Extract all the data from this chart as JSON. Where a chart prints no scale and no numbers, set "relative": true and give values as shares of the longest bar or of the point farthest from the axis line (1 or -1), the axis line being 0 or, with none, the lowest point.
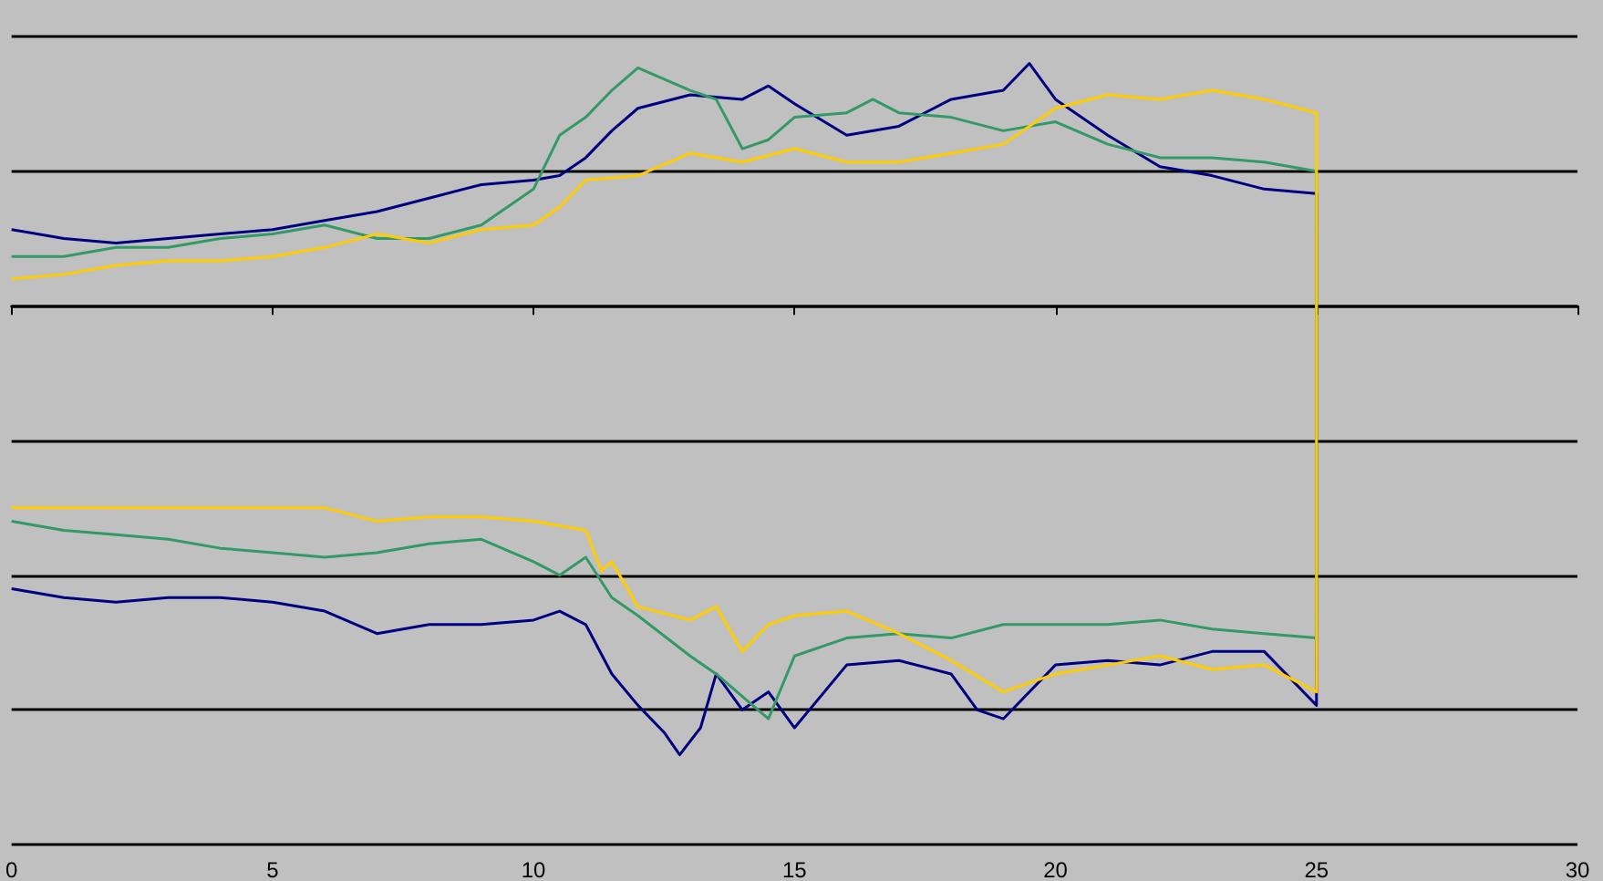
{
  "chart_data": {
    "type": "line",
    "relative": true,
    "xlim": [
      0,
      30
    ],
    "xticks": [
      0,
      5,
      10,
      15,
      20,
      25,
      30
    ],
    "grid": "y",
    "marker": "none",
    "series": [
      {
        "color": "#000080",
        "x": [
          0,
          1,
          2,
          3,
          4,
          5,
          6,
          7,
          8,
          9,
          10,
          10.5,
          11,
          11.5,
          12,
          13,
          14,
          14.5,
          15,
          16,
          17,
          18,
          19,
          19.5,
          20,
          21,
          22,
          23,
          24,
          25,
          25,
          24,
          23,
          22,
          21,
          20,
          19,
          18.5,
          18,
          17,
          16,
          15,
          14.5,
          14,
          13.5,
          13.2,
          12.8,
          12.5,
          12,
          11.5,
          11,
          10.5,
          10,
          9,
          8,
          7,
          6,
          5,
          4,
          3,
          2,
          1,
          0
        ],
        "values": [
          0.17,
          0.15,
          0.14,
          0.15,
          0.16,
          0.17,
          0.19,
          0.21,
          0.24,
          0.27,
          0.28,
          0.29,
          0.33,
          0.39,
          0.44,
          0.47,
          0.46,
          0.49,
          0.45,
          0.38,
          0.4,
          0.46,
          0.48,
          0.54,
          0.46,
          0.38,
          0.31,
          0.29,
          0.26,
          0.25,
          -0.89,
          -0.77,
          -0.77,
          -0.8,
          -0.79,
          -0.8,
          -0.92,
          -0.9,
          -0.82,
          -0.79,
          -0.8,
          -0.94,
          -0.86,
          -0.9,
          -0.82,
          -0.94,
          -1.0,
          -0.95,
          -0.89,
          -0.82,
          -0.71,
          -0.68,
          -0.7,
          -0.71,
          -0.71,
          -0.73,
          -0.68,
          -0.66,
          -0.65,
          -0.65,
          -0.66,
          -0.65,
          -0.63
        ]
      },
      {
        "color": "#339966",
        "x": [
          0,
          1,
          2,
          3,
          4,
          5,
          6,
          7,
          8,
          9,
          10,
          10.5,
          11,
          11.5,
          12,
          13,
          13.5,
          14,
          14.5,
          15,
          16,
          16.5,
          17,
          18,
          19,
          20,
          21,
          22,
          23,
          24,
          25,
          25,
          24,
          23,
          22,
          21,
          20,
          19,
          18,
          17,
          16,
          15,
          14.5,
          14,
          13.5,
          13,
          12,
          11.5,
          11,
          10.5,
          10,
          9,
          8,
          7,
          6,
          5,
          4,
          3,
          2,
          1,
          0
        ],
        "values": [
          0.11,
          0.11,
          0.13,
          0.13,
          0.15,
          0.16,
          0.18,
          0.15,
          0.15,
          0.18,
          0.26,
          0.38,
          0.42,
          0.48,
          0.53,
          0.48,
          0.46,
          0.35,
          0.37,
          0.42,
          0.43,
          0.46,
          0.43,
          0.42,
          0.39,
          0.41,
          0.36,
          0.33,
          0.33,
          0.32,
          0.3,
          -0.74,
          -0.73,
          -0.72,
          -0.7,
          -0.71,
          -0.71,
          -0.71,
          -0.74,
          -0.73,
          -0.74,
          -0.78,
          -0.92,
          -0.87,
          -0.82,
          -0.78,
          -0.69,
          -0.65,
          -0.56,
          -0.6,
          -0.57,
          -0.52,
          -0.53,
          -0.55,
          -0.56,
          -0.55,
          -0.54,
          -0.52,
          -0.51,
          -0.5,
          -0.48
        ]
      },
      {
        "color": "#ffcc00",
        "x": [
          0,
          1,
          2,
          3,
          4,
          5,
          6,
          7,
          8,
          9,
          10,
          10.5,
          11,
          12,
          13,
          14,
          15,
          16,
          17,
          18,
          19,
          20,
          21,
          22,
          23,
          24,
          25,
          25,
          24,
          23,
          22,
          21,
          20,
          19,
          18,
          17,
          16,
          15,
          14.5,
          14,
          13.5,
          13,
          12,
          11.5,
          11.3,
          11,
          10,
          9,
          8,
          7,
          6,
          5,
          4,
          3,
          2,
          1,
          0
        ],
        "values": [
          0.06,
          0.07,
          0.09,
          0.1,
          0.1,
          0.11,
          0.13,
          0.16,
          0.14,
          0.17,
          0.18,
          0.22,
          0.28,
          0.29,
          0.34,
          0.32,
          0.35,
          0.32,
          0.32,
          0.34,
          0.36,
          0.44,
          0.47,
          0.46,
          0.48,
          0.46,
          0.43,
          -0.86,
          -0.8,
          -0.81,
          -0.78,
          -0.8,
          -0.82,
          -0.86,
          -0.79,
          -0.73,
          -0.68,
          -0.69,
          -0.71,
          -0.77,
          -0.67,
          -0.7,
          -0.67,
          -0.57,
          -0.59,
          -0.5,
          -0.48,
          -0.47,
          -0.47,
          -0.48,
          -0.45,
          -0.45,
          -0.45,
          -0.45,
          -0.45,
          -0.45,
          -0.45
        ]
      }
    ]
  }
}
